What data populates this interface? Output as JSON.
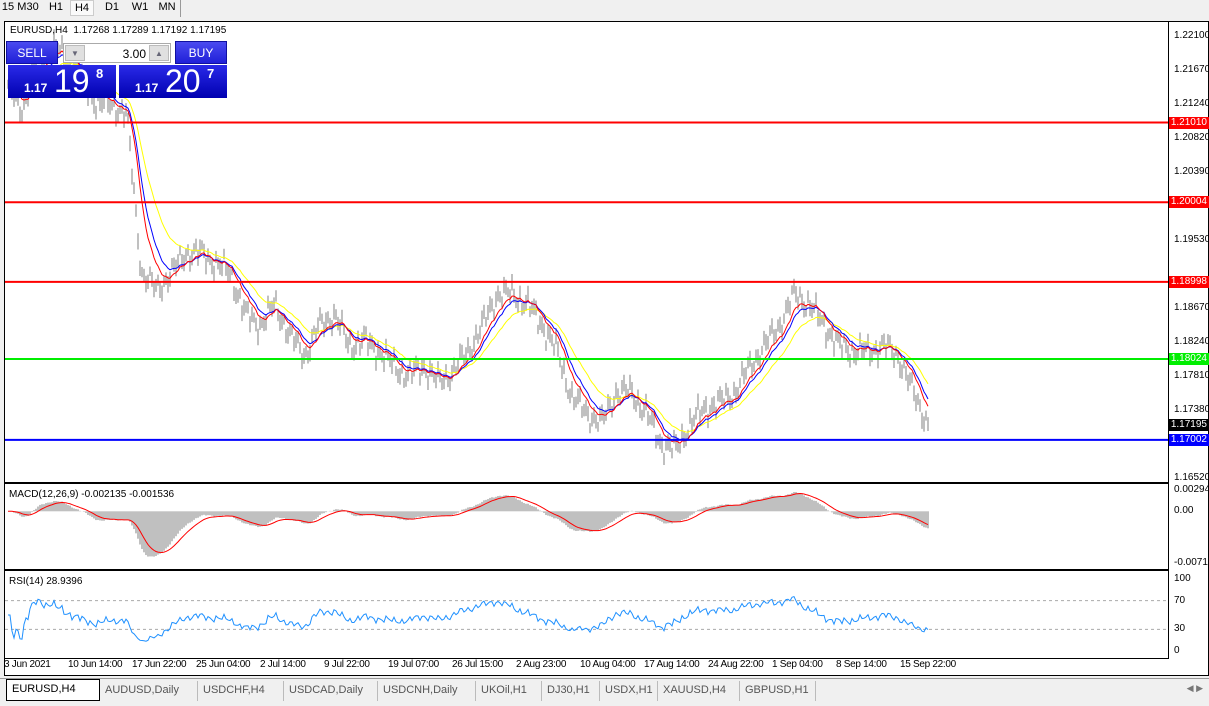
{
  "toolbar": {
    "timeframes": [
      "15",
      "M30",
      "H1",
      "H4",
      "D1",
      "W1",
      "MN"
    ],
    "active": "H4"
  },
  "chart": {
    "title": "EURUSD,H4  1.17268 1.17289 1.17192 1.17195"
  },
  "one_click": {
    "sell_label": "SELL",
    "buy_label": "BUY",
    "lot": "3.00",
    "sell_prefix": "1.17",
    "sell_big": "19",
    "sell_sup": "8",
    "buy_prefix": "1.17",
    "buy_big": "20",
    "buy_sup": "7"
  },
  "price_axis": [
    "1.22100",
    "1.21670",
    "1.21240",
    "1.20820",
    "1.20390",
    "1.19530",
    "1.18670",
    "1.18240",
    "1.17810",
    "1.17380",
    "1.16520"
  ],
  "hlines": [
    {
      "price": "1.21010",
      "color": "#ff0000"
    },
    {
      "price": "1.20004",
      "color": "#ff0000"
    },
    {
      "price": "1.18998",
      "color": "#ff0000"
    },
    {
      "price": "1.18024",
      "color": "#00ee00"
    },
    {
      "price": "1.17002",
      "color": "#0000ff"
    }
  ],
  "current_price": "1.17195",
  "macd": {
    "title": "MACD(12,26,9) -0.002135 -0.001536",
    "axis": [
      "0.002947",
      "0.00",
      "-0.007151"
    ]
  },
  "rsi": {
    "title": "RSI(14) 28.9396",
    "axis": [
      "100",
      "70",
      "30",
      "0"
    ]
  },
  "dates": [
    "3 Jun 2021",
    "10 Jun 14:00",
    "17 Jun 22:00",
    "25 Jun 04:00",
    "2 Jul 14:00",
    "9 Jul 22:00",
    "19 Jul 07:00",
    "26 Jul 15:00",
    "2 Aug 23:00",
    "10 Aug 04:00",
    "17 Aug 14:00",
    "24 Aug 22:00",
    "1 Sep 04:00",
    "8 Sep 14:00",
    "15 Sep 22:00"
  ],
  "tabs": [
    "EURUSD,H4",
    "AUDUSD,Daily",
    "USDCHF,H4",
    "USDCAD,Daily",
    "USDCNH,Daily",
    "UKOil,H1",
    "DJ30,H1",
    "USDX,H1",
    "XAUUSD,H4",
    "GBPUSD,H1"
  ],
  "colors": {
    "bars": "#808080",
    "ma_fast": "#ff0000",
    "ma_mid": "#0000ff",
    "ma_slow": "#ffff00",
    "macd_hist": "#c0c0c0",
    "macd_signal": "#ff0000",
    "rsi": "#1e90ff"
  },
  "chart_data": {
    "type": "ohlc",
    "symbol": "EURUSD",
    "timeframe": "H4",
    "x_ticks": [
      "3 Jun 2021",
      "10 Jun 14:00",
      "17 Jun 22:00",
      "25 Jun 04:00",
      "2 Jul 14:00",
      "9 Jul 22:00",
      "19 Jul 07:00",
      "26 Jul 15:00",
      "2 Aug 23:00",
      "10 Aug 04:00",
      "17 Aug 14:00",
      "24 Aug 22:00",
      "1 Sep 04:00",
      "8 Sep 14:00",
      "15 Sep 22:00"
    ],
    "ylim": [
      1.1647,
      1.2228
    ],
    "approx_close": [
      1.2144,
      1.2118,
      1.2183,
      1.2196,
      1.2183,
      1.2157,
      1.2124,
      1.2124,
      1.2111,
      1.191,
      1.189,
      1.191,
      1.1936,
      1.1936,
      1.1923,
      1.191,
      1.1858,
      1.1845,
      1.1871,
      1.1832,
      1.1806,
      1.1845,
      1.1858,
      1.1819,
      1.1825,
      1.1812,
      1.1793,
      1.178,
      1.1793,
      1.1773,
      1.1786,
      1.1812,
      1.1845,
      1.1884,
      1.1884,
      1.1871,
      1.1845,
      1.1812,
      1.1754,
      1.1734,
      1.1721,
      1.176,
      1.176,
      1.1734,
      1.1695,
      1.1688,
      1.1721,
      1.174,
      1.1747,
      1.176,
      1.1793,
      1.1819,
      1.1845,
      1.1884,
      1.1871,
      1.1845,
      1.1819,
      1.1812,
      1.1812,
      1.1819,
      1.1806,
      1.176,
      1.172
    ]
  }
}
